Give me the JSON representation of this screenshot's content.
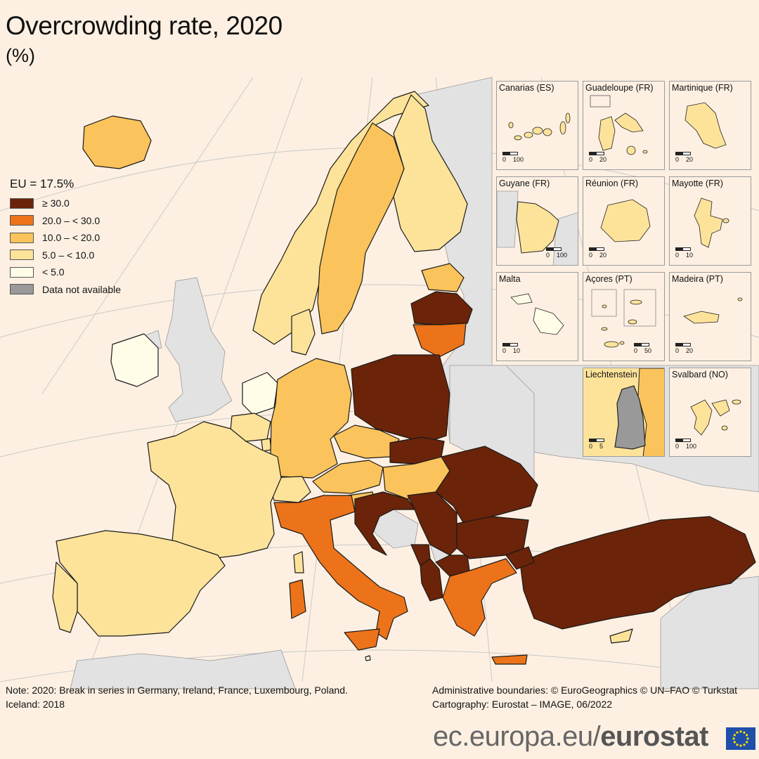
{
  "title": "Overcrowding rate, 2020",
  "subtitle": "(%)",
  "legend": {
    "title": "EU = 17.5%",
    "items": [
      {
        "label": "≥ 30.0",
        "color": "#6b2409"
      },
      {
        "label": "20.0 – < 30.0",
        "color": "#ec7319"
      },
      {
        "label": "10.0 – < 20.0",
        "color": "#fbc35b"
      },
      {
        "label": "5.0 – < 10.0",
        "color": "#fde39a"
      },
      {
        "label": "< 5.0",
        "color": "#fffde8"
      },
      {
        "label": "Data not available",
        "color": "#999999"
      }
    ]
  },
  "colors": {
    "background": "#fdf0e2",
    "non_eu": "#e2e2e2",
    "sea_grid": "#c9c9c9",
    "border": "#1a1a1a"
  },
  "map_data": {
    "classes": {
      "c30": "≥ 30.0",
      "c20": "20.0 – < 30.0",
      "c10": "10.0 – < 20.0",
      "c5": "5.0 – < 10.0",
      "c0": "< 5.0",
      "na": "Data not available"
    },
    "regions": [
      {
        "name": "Iceland",
        "class": "c10"
      },
      {
        "name": "Norway",
        "class": "c5"
      },
      {
        "name": "Sweden",
        "class": "c10"
      },
      {
        "name": "Finland",
        "class": "c5"
      },
      {
        "name": "Estonia",
        "class": "c10"
      },
      {
        "name": "Latvia",
        "class": "c30"
      },
      {
        "name": "Lithuania",
        "class": "c20"
      },
      {
        "name": "Ireland",
        "class": "c0"
      },
      {
        "name": "Denmark",
        "class": "c5"
      },
      {
        "name": "Netherlands",
        "class": "c0"
      },
      {
        "name": "Belgium",
        "class": "c5"
      },
      {
        "name": "Luxembourg",
        "class": "c5"
      },
      {
        "name": "Germany",
        "class": "c10"
      },
      {
        "name": "Poland",
        "class": "c30"
      },
      {
        "name": "Czechia",
        "class": "c10"
      },
      {
        "name": "Slovakia",
        "class": "c30"
      },
      {
        "name": "Austria",
        "class": "c10"
      },
      {
        "name": "Hungary",
        "class": "c10"
      },
      {
        "name": "Slovenia",
        "class": "c10"
      },
      {
        "name": "Switzerland",
        "class": "c5"
      },
      {
        "name": "France",
        "class": "c5"
      },
      {
        "name": "Spain",
        "class": "c5"
      },
      {
        "name": "Portugal",
        "class": "c5"
      },
      {
        "name": "Italy",
        "class": "c20"
      },
      {
        "name": "Croatia",
        "class": "c30"
      },
      {
        "name": "Serbia",
        "class": "c30"
      },
      {
        "name": "Montenegro",
        "class": "c30"
      },
      {
        "name": "North Macedonia",
        "class": "c30"
      },
      {
        "name": "Albania",
        "class": "c30"
      },
      {
        "name": "Romania",
        "class": "c30"
      },
      {
        "name": "Bulgaria",
        "class": "c30"
      },
      {
        "name": "Greece",
        "class": "c20"
      },
      {
        "name": "Turkey",
        "class": "c30"
      },
      {
        "name": "Cyprus",
        "class": "c5"
      },
      {
        "name": "Malta",
        "class": "c0"
      }
    ]
  },
  "insets": [
    {
      "label": "Canarias (ES)",
      "scale": [
        "0",
        "100"
      ]
    },
    {
      "label": "Guadeloupe (FR)",
      "scale": [
        "0",
        "20"
      ]
    },
    {
      "label": "Martinique (FR)",
      "scale": [
        "0",
        "20"
      ]
    },
    {
      "label": "Guyane (FR)",
      "scale": [
        "0",
        "100"
      ]
    },
    {
      "label": "Réunion (FR)",
      "scale": [
        "0",
        "20"
      ]
    },
    {
      "label": "Mayotte (FR)",
      "scale": [
        "0",
        "10"
      ]
    },
    {
      "label": "Malta",
      "scale": [
        "0",
        "10"
      ]
    },
    {
      "label": "Açores (PT)",
      "scale": [
        "0",
        "50"
      ]
    },
    {
      "label": "Madeira (PT)",
      "scale": [
        "0",
        "20"
      ]
    },
    {
      "label": "Liechtenstein",
      "scale": [
        "0",
        "5"
      ]
    },
    {
      "label": "Svalbard (NO)",
      "scale": [
        "0",
        "100"
      ]
    }
  ],
  "note": {
    "line1": "Note: 2020: Break in series in Germany, Ireland, France, Luxembourg, Poland.",
    "line2": "Iceland: 2018"
  },
  "credits": {
    "line1": "Administrative boundaries: © EuroGeographics © UN–FAO © Turkstat",
    "line2": "Cartography: Eurostat – IMAGE, 06/2022"
  },
  "brand": {
    "domain": "ec.europa.eu/",
    "name": "eurostat"
  }
}
